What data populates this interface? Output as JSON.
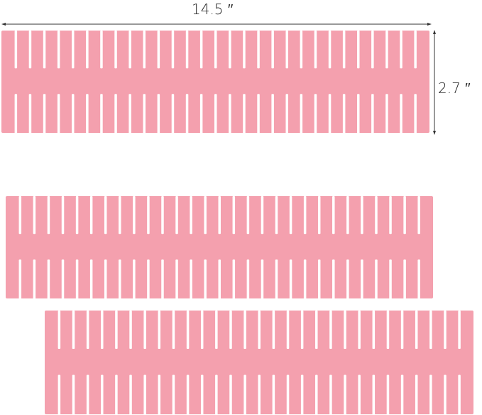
{
  "dimensions": {
    "width_label": "14.5 ′′",
    "height_label": "2.7 ′′"
  },
  "colors": {
    "divider": "#f4a0ae",
    "arrow": "#333333",
    "background": "#ffffff"
  },
  "dividers": [
    {
      "name": "divider-top-measured",
      "teeth": 30
    },
    {
      "name": "divider-middle",
      "teeth": 30
    },
    {
      "name": "divider-bottom",
      "teeth": 30
    }
  ]
}
